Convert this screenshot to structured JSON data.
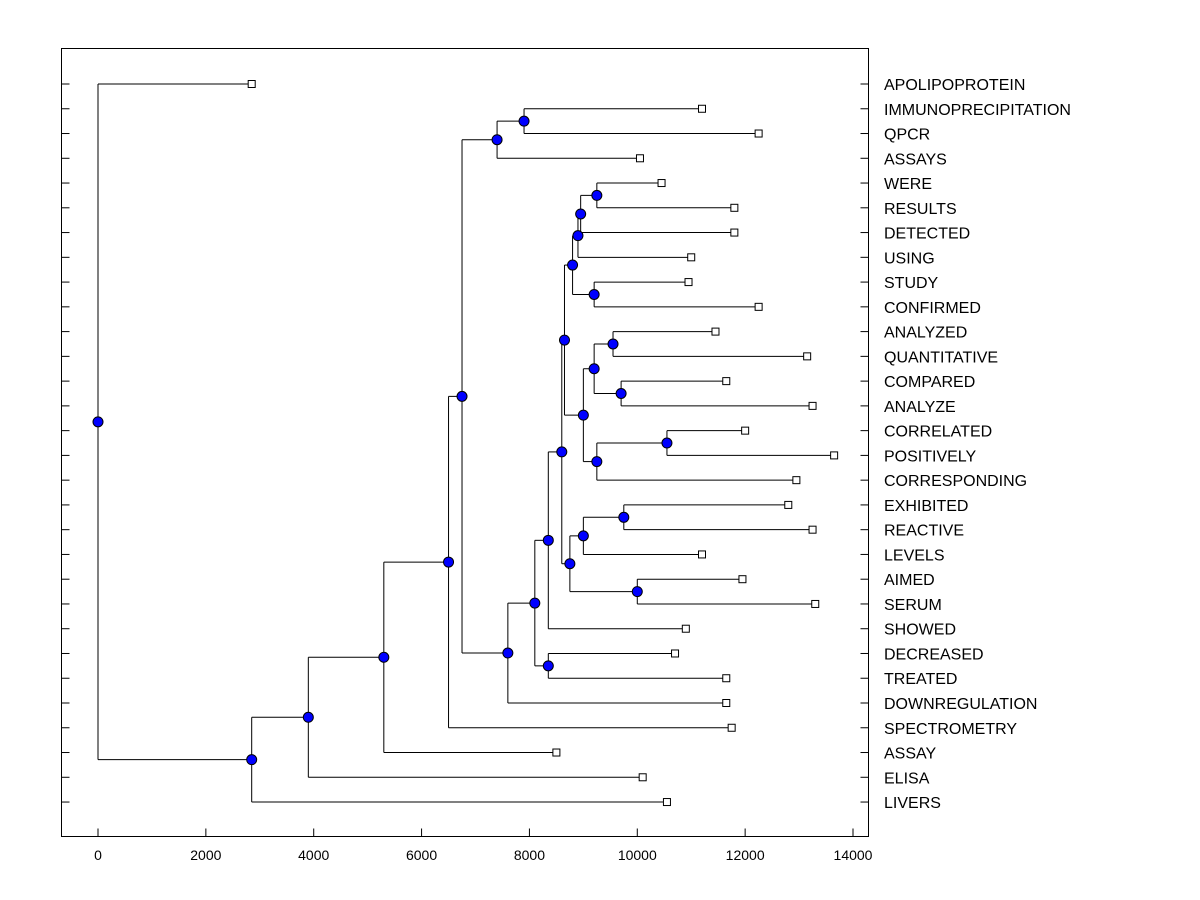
{
  "chart_data": {
    "type": "dendrogram",
    "title": "",
    "xlabel": "",
    "ylabel": "",
    "xlim": [
      -700,
      14300
    ],
    "x_ticks": [
      0,
      2000,
      4000,
      6000,
      8000,
      10000,
      12000,
      14000
    ],
    "x_tick_labels": [
      "0",
      "2000",
      "4000",
      "6000",
      "8000",
      "10000",
      "12000",
      "14000"
    ],
    "colors": {
      "node_fill": "#0000ff",
      "leaf_fill": "#ffffff",
      "line": "#000000"
    },
    "leaves": [
      {
        "label": "APOLIPOPROTEIN",
        "x": 2850
      },
      {
        "label": "IMMUNOPRECIPITATION",
        "x": 11200
      },
      {
        "label": "QPCR",
        "x": 12250
      },
      {
        "label": "ASSAYS",
        "x": 10050
      },
      {
        "label": "WERE",
        "x": 10450
      },
      {
        "label": "RESULTS",
        "x": 11800
      },
      {
        "label": "DETECTED",
        "x": 11800
      },
      {
        "label": "USING",
        "x": 11000
      },
      {
        "label": "STUDY",
        "x": 10950
      },
      {
        "label": "CONFIRMED",
        "x": 12250
      },
      {
        "label": "ANALYZED",
        "x": 11450
      },
      {
        "label": "QUANTITATIVE",
        "x": 13150
      },
      {
        "label": "COMPARED",
        "x": 11650
      },
      {
        "label": "ANALYZE",
        "x": 13250
      },
      {
        "label": "CORRELATED",
        "x": 12000
      },
      {
        "label": "POSITIVELY",
        "x": 13650
      },
      {
        "label": "CORRESPONDING",
        "x": 12950
      },
      {
        "label": "EXHIBITED",
        "x": 12800
      },
      {
        "label": "REACTIVE",
        "x": 13250
      },
      {
        "label": "LEVELS",
        "x": 11200
      },
      {
        "label": "AIMED",
        "x": 11950
      },
      {
        "label": "SERUM",
        "x": 13300
      },
      {
        "label": "SHOWED",
        "x": 10900
      },
      {
        "label": "DECREASED",
        "x": 10700
      },
      {
        "label": "TREATED",
        "x": 11650
      },
      {
        "label": "DOWNREGULATION",
        "x": 11650
      },
      {
        "label": "SPECTROMETRY",
        "x": 11750
      },
      {
        "label": "ASSAY",
        "x": 8500
      },
      {
        "label": "ELISA",
        "x": 10100
      },
      {
        "label": "LIVERS",
        "x": 10550
      }
    ],
    "merges": [
      {
        "id": "n1",
        "x": 7900,
        "children": [
          "IMMUNOPRECIPITATION",
          "QPCR"
        ]
      },
      {
        "id": "n2",
        "x": 7400,
        "children": [
          "n1",
          "ASSAYS"
        ]
      },
      {
        "id": "n3",
        "x": 9250,
        "children": [
          "WERE",
          "RESULTS"
        ]
      },
      {
        "id": "n4",
        "x": 8950,
        "children": [
          "n3",
          "DETECTED"
        ]
      },
      {
        "id": "n5",
        "x": 8900,
        "children": [
          "n4",
          "USING"
        ]
      },
      {
        "id": "n6",
        "x": 9200,
        "children": [
          "STUDY",
          "CONFIRMED"
        ]
      },
      {
        "id": "n7",
        "x": 8800,
        "children": [
          "n5",
          "n6"
        ]
      },
      {
        "id": "n8",
        "x": 9550,
        "children": [
          "ANALYZED",
          "QUANTITATIVE"
        ]
      },
      {
        "id": "n9",
        "x": 9700,
        "children": [
          "COMPARED",
          "ANALYZE"
        ]
      },
      {
        "id": "n10",
        "x": 9200,
        "children": [
          "n8",
          "n9"
        ]
      },
      {
        "id": "n11",
        "x": 10550,
        "children": [
          "CORRELATED",
          "POSITIVELY"
        ]
      },
      {
        "id": "n12",
        "x": 9250,
        "children": [
          "n11",
          "CORRESPONDING"
        ]
      },
      {
        "id": "n13",
        "x": 9000,
        "children": [
          "n10",
          "n12"
        ]
      },
      {
        "id": "n14",
        "x": 8650,
        "children": [
          "n7",
          "n13"
        ]
      },
      {
        "id": "n15",
        "x": 9750,
        "children": [
          "EXHIBITED",
          "REACTIVE"
        ]
      },
      {
        "id": "n16",
        "x": 9000,
        "children": [
          "n15",
          "LEVELS"
        ]
      },
      {
        "id": "n17",
        "x": 10000,
        "children": [
          "AIMED",
          "SERUM"
        ]
      },
      {
        "id": "n18",
        "x": 8750,
        "children": [
          "n16",
          "n17"
        ]
      },
      {
        "id": "n19",
        "x": 8600,
        "children": [
          "n14",
          "n18"
        ]
      },
      {
        "id": "n20",
        "x": 8350,
        "children": [
          "n19",
          "SHOWED"
        ]
      },
      {
        "id": "n21",
        "x": 8350,
        "children": [
          "DECREASED",
          "TREATED"
        ]
      },
      {
        "id": "n22",
        "x": 8100,
        "children": [
          "n20",
          "n21"
        ]
      },
      {
        "id": "n23",
        "x": 7600,
        "children": [
          "n22",
          "DOWNREGULATION"
        ]
      },
      {
        "id": "n24",
        "x": 6750,
        "children": [
          "n2",
          "n23"
        ]
      },
      {
        "id": "n25",
        "x": 6500,
        "children": [
          "n24",
          "SPECTROMETRY"
        ]
      },
      {
        "id": "n26",
        "x": 5300,
        "children": [
          "n25",
          "ASSAY"
        ]
      },
      {
        "id": "n27",
        "x": 3900,
        "children": [
          "n26",
          "ELISA"
        ]
      },
      {
        "id": "n28",
        "x": 2850,
        "children": [
          "n27",
          "LIVERS"
        ]
      },
      {
        "id": "n29",
        "x": 0,
        "children": [
          "APOLIPOPROTEIN",
          "n28"
        ]
      }
    ]
  }
}
